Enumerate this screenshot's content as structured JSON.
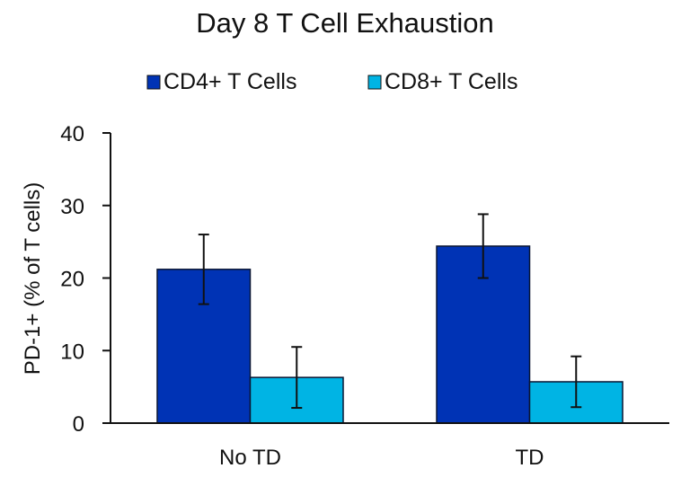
{
  "chart_data": {
    "type": "bar",
    "title": "Day 8 T Cell Exhaustion",
    "xlabel": "",
    "ylabel": "PD-1+ (% of T cells)",
    "ylim": [
      0,
      40
    ],
    "yticks": [
      0,
      10,
      20,
      30,
      40
    ],
    "grid": false,
    "legend_position": "top-center",
    "categories": [
      "No TD",
      "TD"
    ],
    "series": [
      {
        "name": "CD4+ T Cells",
        "color": "#0033B5",
        "values": [
          21.2,
          24.4
        ],
        "errors": [
          4.8,
          4.4
        ]
      },
      {
        "name": "CD8+ T Cells",
        "color": "#00B4E4",
        "values": [
          6.3,
          5.7
        ],
        "errors": [
          4.2,
          3.5
        ]
      }
    ]
  }
}
